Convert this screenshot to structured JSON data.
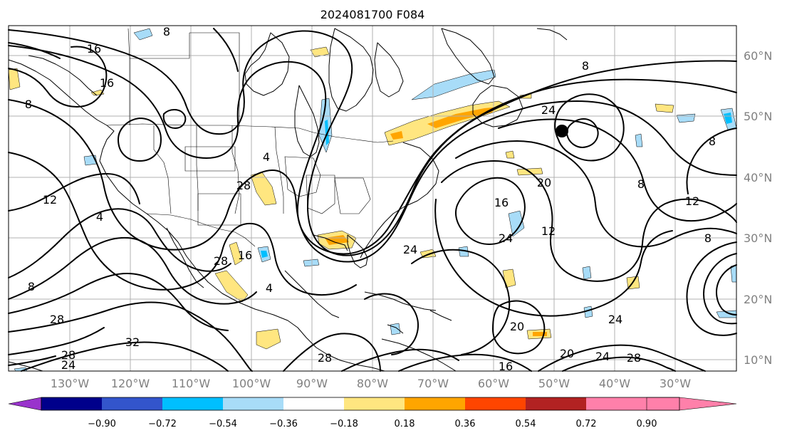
{
  "title": "2024081700 F084",
  "lon_labels": [
    "130°W",
    "120°W",
    "110°W",
    "100°W",
    "90°W",
    "80°W",
    "70°W",
    "60°W",
    "50°W",
    "40°W",
    "30°W"
  ],
  "lat_labels": [
    "60°N",
    "50°N",
    "40°N",
    "30°N",
    "20°N",
    "10°N"
  ],
  "colorbar": {
    "labels": [
      "−0.90",
      "−0.72",
      "−0.54",
      "−0.36",
      "−0.18",
      "0.18",
      "0.36",
      "0.54",
      "0.72",
      "0.90"
    ],
    "colors": [
      "#9933cc",
      "#00008b",
      "#3355cc",
      "#00bfff",
      "#a8dcf8",
      "#ffffff",
      "#ffe680",
      "#ffa500",
      "#ff4500",
      "#b22222",
      "#ff80aa"
    ]
  },
  "contour_labels": [
    "8",
    "16",
    "16",
    "8",
    "4",
    "12",
    "28",
    "28",
    "16",
    "28",
    "32",
    "28",
    "24",
    "8",
    "24",
    "20",
    "16",
    "24",
    "12",
    "24",
    "20",
    "16",
    "20",
    "24",
    "28",
    "8",
    "8",
    "8",
    "12",
    "8",
    "24",
    "28",
    "4",
    "4"
  ],
  "marker": "low-center"
}
